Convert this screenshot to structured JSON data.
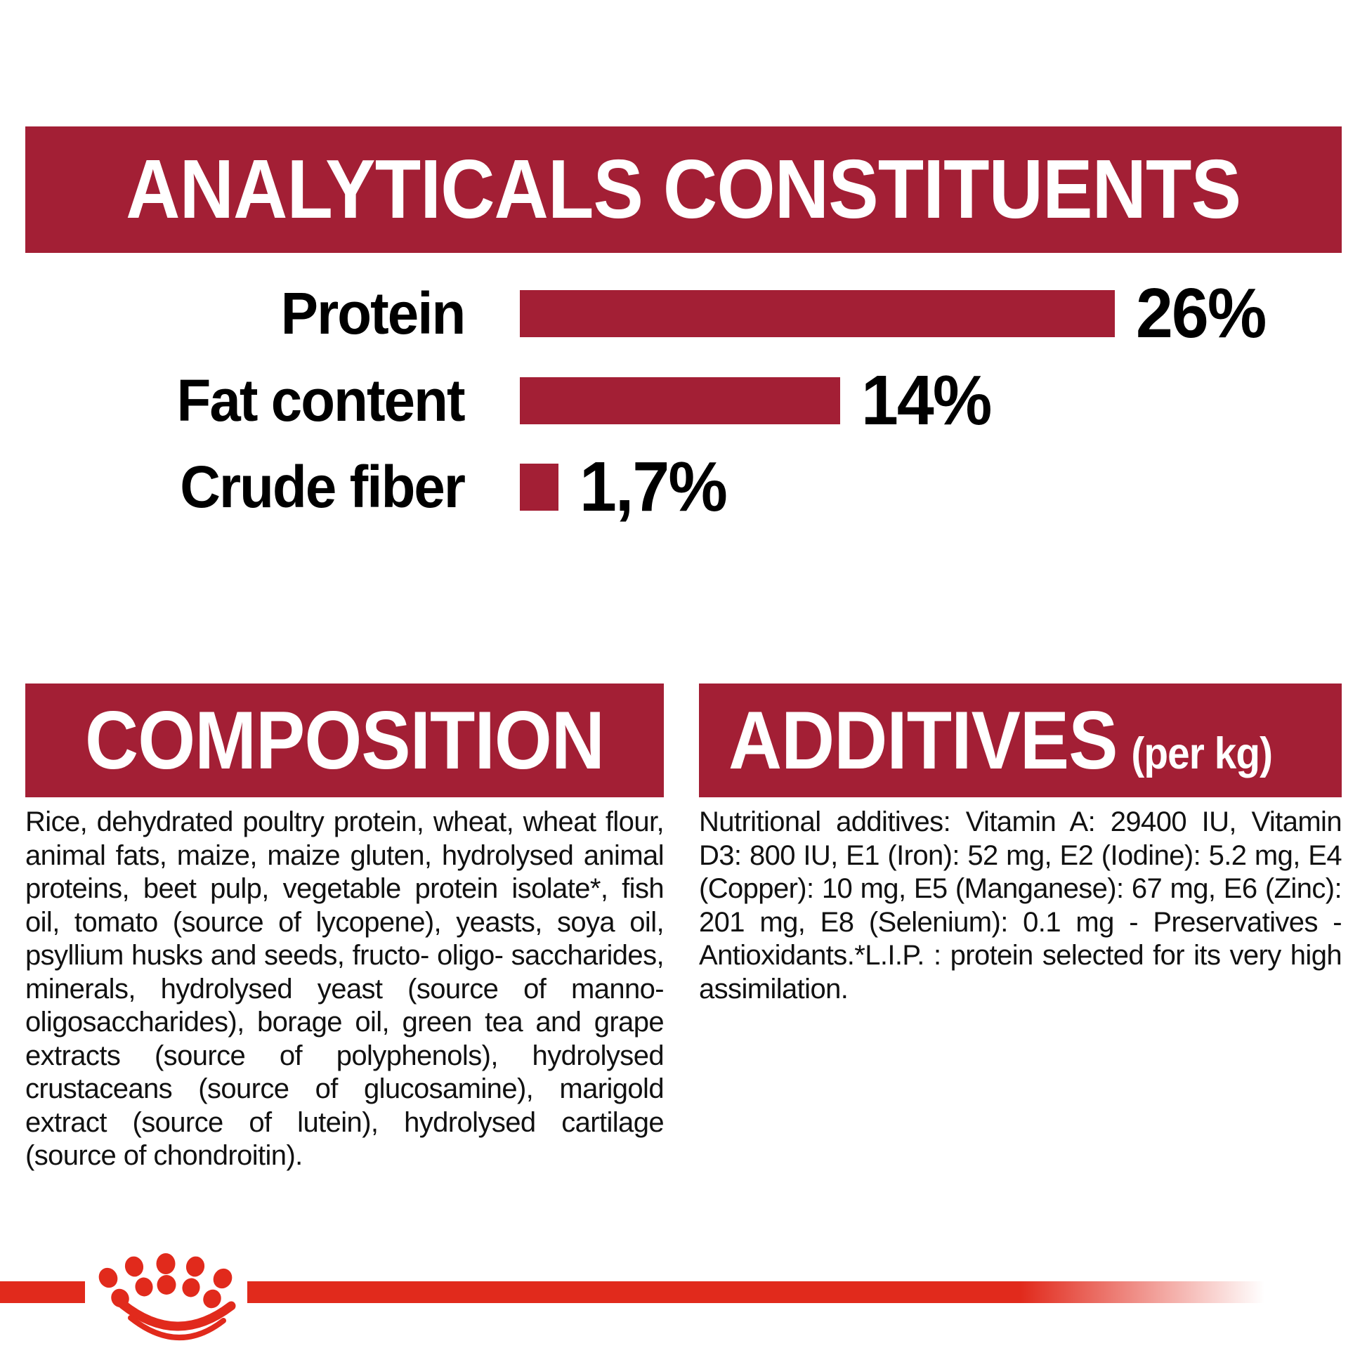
{
  "colors": {
    "crimson": "#A31F35",
    "bright_red": "#E12A1C",
    "text": "#111111",
    "background": "#FFFFFF"
  },
  "header": {
    "title": "ANALYTICALS CONSTITUENTS"
  },
  "chart_data": {
    "type": "bar",
    "orientation": "horizontal",
    "title": "ANALYTICALS CONSTITUENTS",
    "categories": [
      "Protein",
      "Fat content",
      "Crude fiber"
    ],
    "values": [
      26,
      14,
      1.7
    ],
    "value_labels": [
      "26%",
      "14%",
      "1,7%"
    ],
    "xlabel": "",
    "ylabel": "",
    "xlim": [
      0,
      26
    ],
    "grid": false,
    "legend": false,
    "bar_color": "#A31F35"
  },
  "composition": {
    "title": "COMPOSITION",
    "body": "Rice, dehydrated poultry protein, wheat, wheat flour, animal fats, maize, maize gluten, hydrolysed animal proteins, beet pulp, vegetable protein isolate*, fish oil, tomato (source of lycopene), yeasts, soya oil, psyllium husks and seeds, fructo- oligo- saccharides, minerals, hydrolysed yeast (source of manno- oligosaccharides), borage oil, green tea and grape extracts (source of polyphenols), hydrolysed crustaceans (source of glucosamine), marigold extract (source of lutein), hydrolysed cartilage (source of chondroitin)."
  },
  "additives": {
    "title": "ADDITIVES",
    "unit_label": "(per kg)",
    "body": "Nutritional additives: Vitamin A: 29400 IU, Vitamin D3: 800 IU, E1 (Iron): 52 mg, E2 (Iodine): 5.2 mg, E4 (Copper): 10 mg, E5 (Manganese): 67 mg, E6 (Zinc): 201 mg, E8 (Selenium): 0.1 mg - Preservatives - Antioxidants.*L.I.P. : protein selected for its very high assimilation."
  },
  "footer": {
    "logo_icon": "royal-canin-crown-paw-icon"
  }
}
